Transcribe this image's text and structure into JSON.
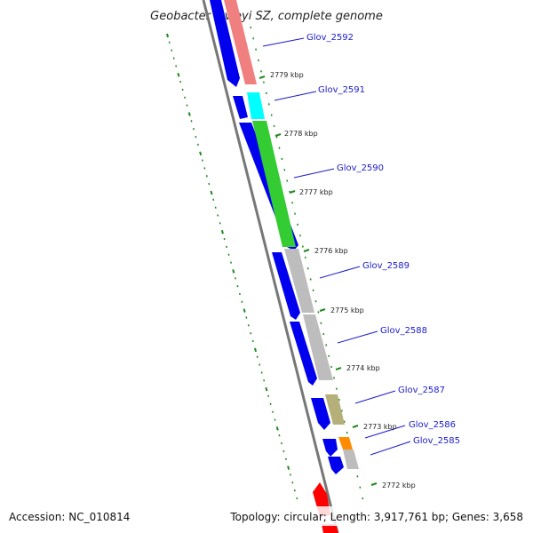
{
  "title": "Geobacter lovleyi SZ, complete genome",
  "footer": {
    "accession": "Accession: NC_010814",
    "summary": "Topology: circular; Length: 3,917,761 bp; Genes: 3,658"
  },
  "colors": {
    "backbone": "#777777",
    "tick": "#1e8a1e",
    "label_line": "#1a1acc",
    "outer_dots": "#1e8a1e"
  },
  "position_labels": [
    "2779 kbp",
    "2778 kbp",
    "2777 kbp",
    "2776 kbp",
    "2775 kbp",
    "2774 kbp",
    "2773 kbp",
    "2772 kbp"
  ],
  "genes": [
    {
      "id": "Glov_2592",
      "label": "Glov_2592",
      "color": "#f08080"
    },
    {
      "id": "Glov_2591",
      "label": "Glov_2591",
      "color": "#00ffff"
    },
    {
      "id": "Glov_2590",
      "label": "Glov_2590",
      "color": "#33cc33"
    },
    {
      "id": "Glov_2589",
      "label": "Glov_2589",
      "color": "#bdbdbd"
    },
    {
      "id": "Glov_2588",
      "label": "Glov_2588",
      "color": "#bdbdbd"
    },
    {
      "id": "Glov_2587",
      "label": "Glov_2587",
      "color": "#b5b07a"
    },
    {
      "id": "Glov_2586",
      "label": "Glov_2586",
      "color": "#ff8c00"
    },
    {
      "id": "Glov_2585",
      "label": "Glov_2585",
      "color": "#bdbdbd"
    }
  ],
  "blue_track_color": "#0000ee",
  "red_track_color": "#ff0000"
}
